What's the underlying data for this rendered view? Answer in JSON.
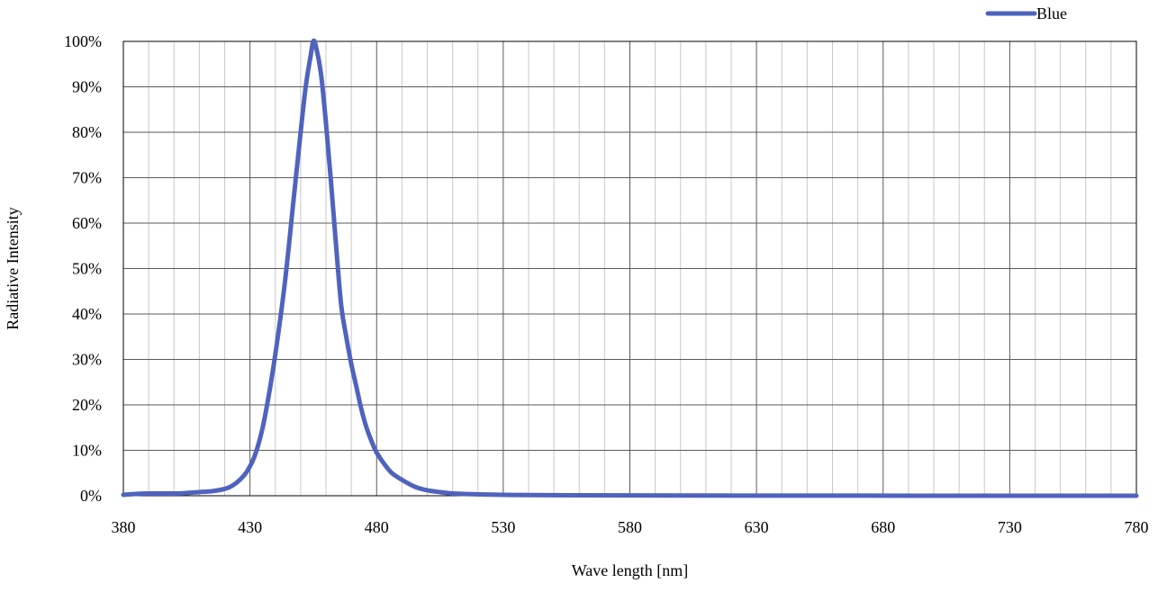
{
  "chart_data": {
    "type": "line",
    "xlabel": "Wave length [nm]",
    "ylabel": "Radiative Intensity",
    "xlim": [
      380,
      780
    ],
    "ylim": [
      0,
      100
    ],
    "x_ticks": [
      380,
      430,
      480,
      530,
      580,
      630,
      680,
      730,
      780
    ],
    "x_tick_labels": [
      "380",
      "430",
      "480",
      "530",
      "580",
      "630",
      "680",
      "730",
      "780"
    ],
    "y_ticks": [
      0,
      10,
      20,
      30,
      40,
      50,
      60,
      70,
      80,
      90,
      100
    ],
    "y_tick_labels": [
      "0%",
      "10%",
      "20%",
      "30%",
      "40%",
      "50%",
      "60%",
      "70%",
      "80%",
      "90%",
      "100%"
    ],
    "x_minor_step": 10,
    "grid": true,
    "legend_position": "top-right",
    "series": [
      {
        "name": "Blue",
        "color": "#4F63BE",
        "x": [
          380,
          385,
          390,
          395,
          400,
          405,
          410,
          415,
          420,
          423,
          426,
          429,
          432,
          435,
          438,
          441,
          444,
          447,
          450,
          452,
          454,
          455,
          456,
          458,
          460,
          462,
          464,
          466,
          468,
          470,
          472,
          474,
          476,
          478,
          480,
          483,
          486,
          490,
          495,
          500,
          505,
          510,
          520,
          530,
          540,
          560,
          600,
          650,
          700,
          750,
          780
        ],
        "y": [
          0.2,
          0.4,
          0.5,
          0.5,
          0.5,
          0.6,
          0.8,
          1.0,
          1.5,
          2.2,
          3.5,
          5.5,
          9.0,
          15.0,
          24.0,
          35.0,
          48.0,
          64.0,
          80.0,
          90.0,
          97.0,
          100.0,
          99.0,
          93.0,
          82.0,
          69.0,
          55.0,
          42.0,
          35.0,
          29.0,
          24.0,
          19.0,
          15.0,
          12.0,
          9.5,
          7.0,
          5.0,
          3.5,
          2.0,
          1.2,
          0.8,
          0.5,
          0.3,
          0.2,
          0.15,
          0.1,
          0.05,
          0.02,
          0.01,
          0.0,
          0.0
        ]
      }
    ]
  }
}
